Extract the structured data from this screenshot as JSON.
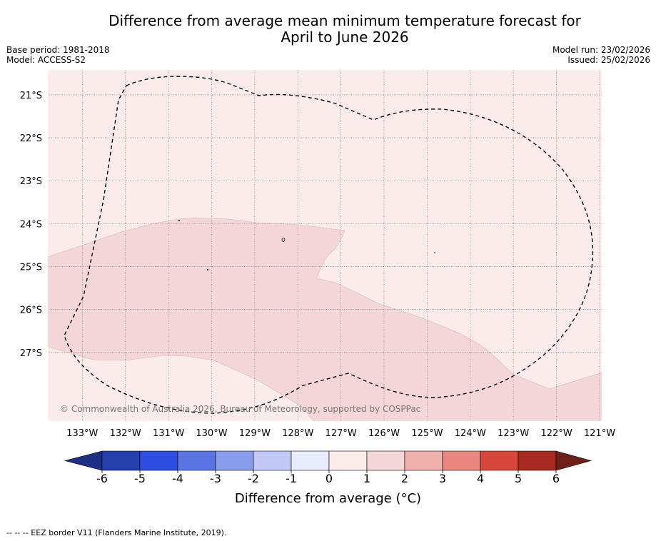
{
  "title_line1": "Difference from average mean minimum temperature forecast for",
  "title_line2": "April to June 2026",
  "meta_left": [
    "Base period: 1981-2018",
    "Model: ACCESS-S2"
  ],
  "meta_right": [
    "Model run: 23/02/2026",
    "Issued: 25/02/2026"
  ],
  "map": {
    "lat_labels": [
      "21°S",
      "22°S",
      "23°S",
      "24°S",
      "25°S",
      "26°S",
      "27°S"
    ],
    "lon_labels": [
      "133°W",
      "132°W",
      "131°W",
      "130°W",
      "129°W",
      "128°W",
      "127°W",
      "126°W",
      "125°W",
      "124°W",
      "123°W",
      "122°W",
      "121°W"
    ],
    "lat_range": [
      -28.6,
      -20.42
    ],
    "lon_range": [
      -133.8,
      -120.95
    ],
    "background_category": "0 to 1",
    "overlay_category": "1 to 2",
    "copyright": "© Commonwealth of Australia 2026, Bureau of Meteorology, supported by COSPPac"
  },
  "colorbar": {
    "tick_labels": [
      "-6",
      "-5",
      "-4",
      "-3",
      "-2",
      "-1",
      "0",
      "1",
      "2",
      "3",
      "4",
      "5",
      "6"
    ],
    "colors": [
      "#1d2f84",
      "#2540ad",
      "#2d4ee0",
      "#5a74e4",
      "#8a9ded",
      "#c2c9f6",
      "#e8ebfb",
      "#fbeceb",
      "#f5d6d6",
      "#efb1ac",
      "#e88780",
      "#d9463c",
      "#a92a22",
      "#6e1f17"
    ],
    "title": "Difference from average (°C)"
  },
  "footnote": "-- -- -- EEZ border V11 (Flanders Marine Institute, 2019)."
}
